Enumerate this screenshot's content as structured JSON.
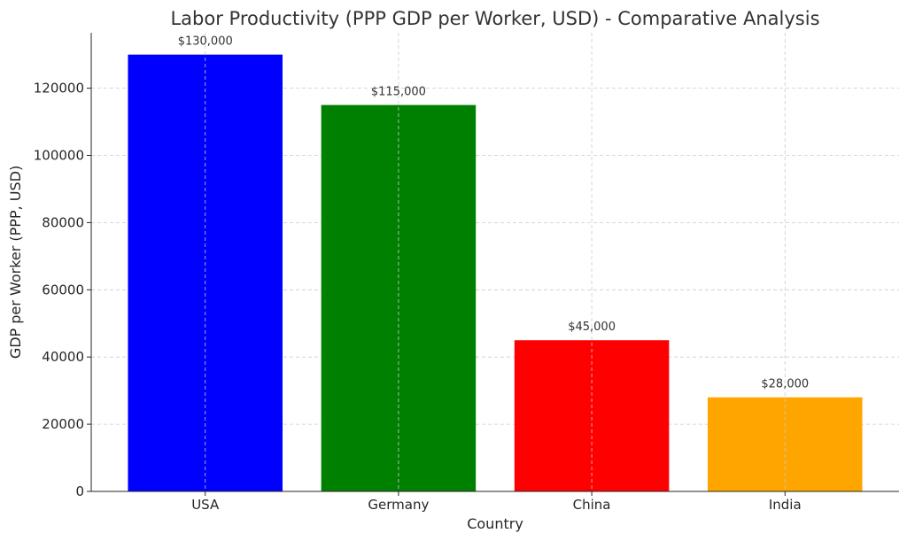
{
  "chart_data": {
    "type": "bar",
    "title": "Labor Productivity (PPP GDP per Worker, USD) - Comparative Analysis",
    "xlabel": "Country",
    "ylabel": "GDP per Worker (PPP, USD)",
    "categories": [
      "USA",
      "Germany",
      "China",
      "India"
    ],
    "values": [
      130000,
      115000,
      45000,
      28000
    ],
    "data_labels": [
      "$130,000",
      "$115,000",
      "$45,000",
      "$28,000"
    ],
    "colors": [
      "#0000ff",
      "#008000",
      "#ff0000",
      "#ffa500"
    ],
    "ylim": [
      0,
      136500
    ],
    "yticks": [
      0,
      20000,
      40000,
      60000,
      80000,
      100000,
      120000
    ],
    "ytick_labels": [
      "0",
      "20000",
      "40000",
      "60000",
      "80000",
      "100000",
      "120000"
    ],
    "grid": true
  }
}
